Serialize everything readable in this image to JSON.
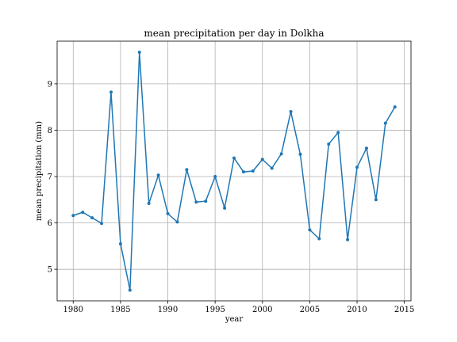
{
  "chart_data": {
    "type": "line",
    "title": "mean precipitation per day in Dolkha",
    "xlabel": "year",
    "ylabel": "mean precipitation (mm)",
    "xlim": [
      1978.3,
      2015.7
    ],
    "ylim": [
      4.32,
      9.92
    ],
    "xticks": [
      1980,
      1985,
      1990,
      1995,
      2000,
      2005,
      2010,
      2015
    ],
    "yticks": [
      5,
      6,
      7,
      8,
      9
    ],
    "grid": true,
    "color": "#1f77b4",
    "marker": "dot",
    "series": [
      {
        "x": [
          1980,
          1981,
          1982,
          1983,
          1984,
          1985,
          1986,
          1987,
          1988,
          1989,
          1990,
          1991,
          1992,
          1993,
          1994,
          1995,
          1996,
          1997,
          1998,
          1999,
          2000,
          2001,
          2002,
          2003,
          2004,
          2005,
          2006,
          2007,
          2008,
          2009,
          2010,
          2011,
          2012,
          2013,
          2014
        ],
        "values": [
          6.16,
          6.23,
          6.11,
          5.99,
          8.82,
          5.55,
          4.55,
          9.68,
          6.42,
          7.03,
          6.2,
          6.02,
          7.15,
          6.45,
          6.47,
          7.0,
          6.32,
          7.4,
          7.1,
          7.12,
          7.37,
          7.18,
          7.49,
          8.4,
          7.48,
          5.85,
          5.66,
          7.7,
          7.95,
          5.64,
          7.2,
          7.61,
          6.5,
          8.15,
          8.5
        ]
      }
    ]
  }
}
